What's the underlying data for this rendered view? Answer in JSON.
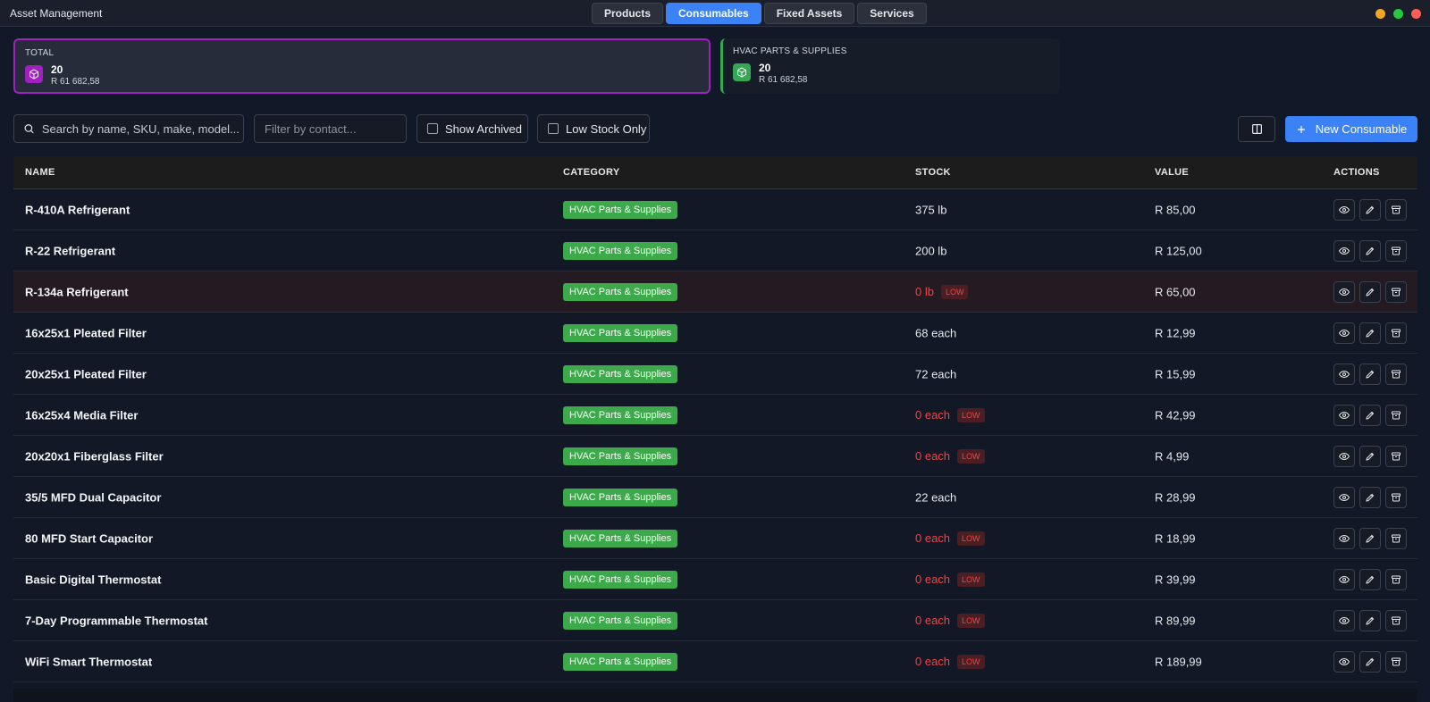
{
  "app": {
    "title": "Asset Management"
  },
  "tabs": [
    {
      "label": "Products",
      "active": false
    },
    {
      "label": "Consumables",
      "active": true
    },
    {
      "label": "Fixed Assets",
      "active": false
    },
    {
      "label": "Services",
      "active": false
    }
  ],
  "window_controls": [
    {
      "name": "minimize",
      "color": "#f5a623"
    },
    {
      "name": "maximize",
      "color": "#27c93f"
    },
    {
      "name": "close",
      "color": "#ff5f57"
    }
  ],
  "summary": {
    "total": {
      "label": "TOTAL",
      "count": "20",
      "value": "R 61 682,58",
      "color": "#a020c0",
      "icon": "box-icon"
    },
    "hvac": {
      "label": "HVAC PARTS & SUPPLIES",
      "count": "20",
      "value": "R 61 682,58",
      "color": "#34a853",
      "icon": "box-icon"
    }
  },
  "toolbar": {
    "search_placeholder": "Search by name, SKU, make, model...",
    "contact_placeholder": "Filter by contact...",
    "show_archived": "Show Archived",
    "low_stock_only": "Low Stock Only",
    "new_button": "New Consumable"
  },
  "table": {
    "headers": {
      "name": "NAME",
      "category": "CATEGORY",
      "stock": "STOCK",
      "value": "VALUE",
      "actions": "ACTIONS"
    },
    "low_label": "LOW",
    "rows": [
      {
        "name": "R-410A Refrigerant",
        "category": "HVAC Parts & Supplies",
        "stock": "375 lb",
        "low": false,
        "value": "R 85,00"
      },
      {
        "name": "R-22 Refrigerant",
        "category": "HVAC Parts & Supplies",
        "stock": "200 lb",
        "low": false,
        "value": "R 125,00"
      },
      {
        "name": "R-134a Refrigerant",
        "category": "HVAC Parts & Supplies",
        "stock": "0 lb",
        "low": true,
        "value": "R 65,00"
      },
      {
        "name": "16x25x1 Pleated Filter",
        "category": "HVAC Parts & Supplies",
        "stock": "68 each",
        "low": false,
        "value": "R 12,99"
      },
      {
        "name": "20x25x1 Pleated Filter",
        "category": "HVAC Parts & Supplies",
        "stock": "72 each",
        "low": false,
        "value": "R 15,99"
      },
      {
        "name": "16x25x4 Media Filter",
        "category": "HVAC Parts & Supplies",
        "stock": "0 each",
        "low": true,
        "value": "R 42,99"
      },
      {
        "name": "20x20x1 Fiberglass Filter",
        "category": "HVAC Parts & Supplies",
        "stock": "0 each",
        "low": true,
        "value": "R 4,99"
      },
      {
        "name": "35/5 MFD Dual Capacitor",
        "category": "HVAC Parts & Supplies",
        "stock": "22 each",
        "low": false,
        "value": "R 28,99"
      },
      {
        "name": "80 MFD Start Capacitor",
        "category": "HVAC Parts & Supplies",
        "stock": "0 each",
        "low": true,
        "value": "R 18,99"
      },
      {
        "name": "Basic Digital Thermostat",
        "category": "HVAC Parts & Supplies",
        "stock": "0 each",
        "low": true,
        "value": "R 39,99"
      },
      {
        "name": "7-Day Programmable Thermostat",
        "category": "HVAC Parts & Supplies",
        "stock": "0 each",
        "low": true,
        "value": "R 89,99"
      },
      {
        "name": "WiFi Smart Thermostat",
        "category": "HVAC Parts & Supplies",
        "stock": "0 each",
        "low": true,
        "value": "R 189,99"
      }
    ]
  }
}
